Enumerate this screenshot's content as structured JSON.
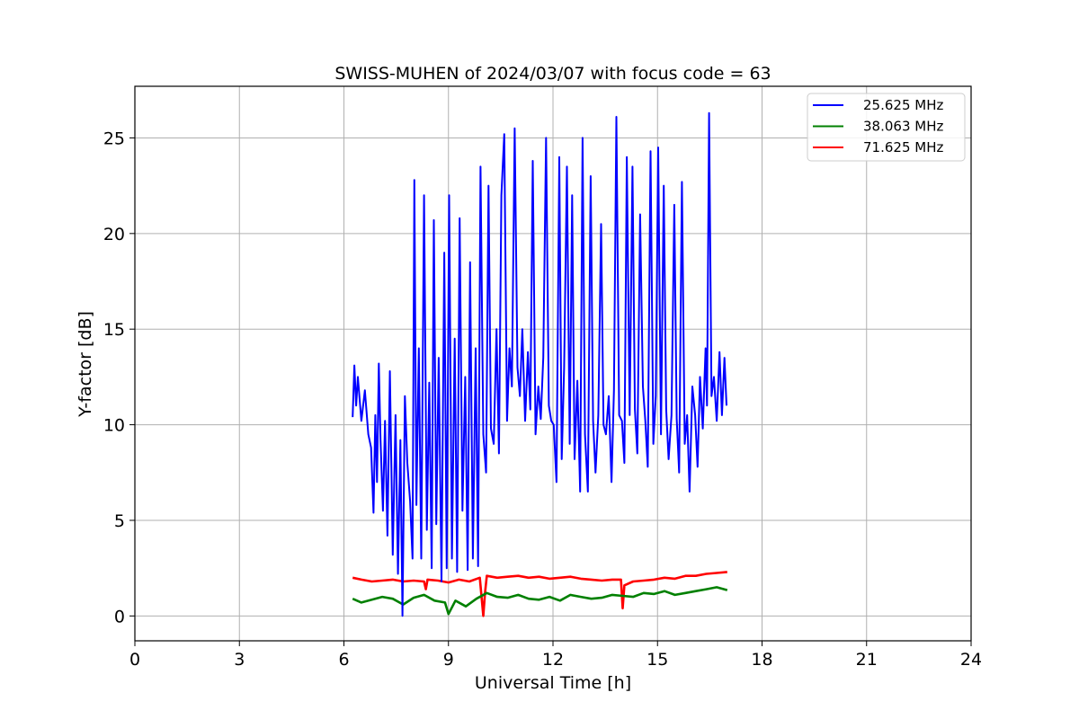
{
  "chart_data": {
    "type": "line",
    "title": "SWISS-MUHEN of 2024/03/07 with focus code = 63",
    "xlabel": "Universal Time [h]",
    "ylabel": "Y-factor [dB]",
    "xlim": [
      0,
      24
    ],
    "ylim": [
      -1.3,
      27.7
    ],
    "xticks": [
      "0",
      "3",
      "6",
      "9",
      "12",
      "15",
      "18",
      "21",
      "24"
    ],
    "yticks": [
      "0",
      "5",
      "10",
      "15",
      "20",
      "25"
    ],
    "grid": true,
    "legend_position": "top-right",
    "series": [
      {
        "name": "25.625 MHz",
        "color": "#0000ff",
        "x": [
          6.25,
          6.3,
          6.35,
          6.4,
          6.5,
          6.6,
          6.7,
          6.78,
          6.85,
          6.9,
          6.95,
          7.0,
          7.05,
          7.12,
          7.18,
          7.25,
          7.32,
          7.4,
          7.48,
          7.55,
          7.62,
          7.68,
          7.75,
          7.82,
          7.9,
          7.97,
          8.02,
          8.08,
          8.15,
          8.22,
          8.3,
          8.38,
          8.45,
          8.52,
          8.58,
          8.65,
          8.72,
          8.8,
          8.88,
          8.95,
          9.02,
          9.1,
          9.18,
          9.25,
          9.32,
          9.4,
          9.48,
          9.55,
          9.62,
          9.7,
          9.78,
          9.85,
          9.92,
          10.0,
          10.08,
          10.15,
          10.22,
          10.3,
          10.38,
          10.45,
          10.52,
          10.6,
          10.68,
          10.75,
          10.82,
          10.9,
          10.98,
          11.05,
          11.12,
          11.2,
          11.28,
          11.35,
          11.42,
          11.5,
          11.58,
          11.65,
          11.72,
          11.8,
          11.88,
          11.95,
          12.02,
          12.1,
          12.18,
          12.25,
          12.32,
          12.4,
          12.48,
          12.55,
          12.62,
          12.7,
          12.78,
          12.85,
          12.92,
          13.0,
          13.08,
          13.15,
          13.22,
          13.3,
          13.38,
          13.45,
          13.52,
          13.6,
          13.68,
          13.75,
          13.82,
          13.9,
          13.98,
          14.05,
          14.12,
          14.2,
          14.28,
          14.35,
          14.42,
          14.5,
          14.58,
          14.65,
          14.72,
          14.8,
          14.88,
          14.95,
          15.02,
          15.1,
          15.18,
          15.25,
          15.32,
          15.4,
          15.48,
          15.55,
          15.62,
          15.7,
          15.78,
          15.85,
          15.92,
          16.0,
          16.08,
          16.15,
          16.22,
          16.3,
          16.38,
          16.42,
          16.48,
          16.55,
          16.62,
          16.7,
          16.78,
          16.85,
          16.92,
          16.98
        ],
        "y": [
          10.4,
          13.1,
          11.0,
          12.5,
          10.2,
          11.8,
          9.5,
          8.8,
          5.4,
          10.5,
          7.0,
          13.2,
          9.2,
          5.5,
          10.2,
          4.2,
          12.8,
          3.2,
          10.5,
          2.2,
          9.2,
          0.0,
          11.5,
          8.0,
          6.0,
          3.0,
          22.8,
          5.8,
          14.0,
          3.0,
          22.0,
          4.5,
          12.2,
          2.5,
          20.7,
          4.8,
          13.5,
          1.8,
          19.0,
          2.5,
          22.0,
          3.0,
          14.5,
          2.3,
          20.8,
          5.5,
          12.5,
          2.4,
          18.5,
          3.0,
          14.0,
          2.6,
          23.5,
          9.5,
          7.5,
          22.5,
          9.8,
          9.0,
          15.0,
          8.5,
          22.0,
          25.2,
          10.2,
          14.0,
          12.0,
          25.5,
          13.0,
          11.5,
          15.0,
          10.2,
          13.8,
          10.8,
          23.8,
          9.5,
          12.0,
          10.3,
          13.5,
          25.0,
          11.0,
          10.2,
          10.0,
          7.0,
          24.0,
          8.2,
          13.0,
          23.5,
          9.0,
          22.0,
          8.2,
          12.3,
          6.5,
          25.0,
          9.5,
          6.5,
          23.0,
          10.2,
          7.5,
          10.5,
          20.5,
          10.0,
          9.5,
          11.5,
          7.0,
          11.8,
          26.1,
          10.5,
          10.2,
          8.0,
          24.0,
          10.5,
          23.5,
          10.8,
          8.5,
          21.0,
          12.0,
          10.2,
          7.8,
          24.3,
          9.0,
          11.5,
          24.5,
          9.5,
          22.5,
          10.8,
          8.2,
          10.5,
          21.5,
          10.3,
          7.5,
          22.7,
          9.0,
          10.5,
          6.5,
          12.0,
          10.5,
          7.8,
          12.5,
          9.8,
          14.0,
          11.0,
          26.3,
          11.5,
          12.5,
          10.2,
          13.8,
          10.5,
          13.5,
          11.0
        ]
      },
      {
        "name": "38.063 MHz",
        "color": "#008000",
        "x": [
          6.25,
          6.5,
          6.8,
          7.1,
          7.4,
          7.7,
          8.0,
          8.3,
          8.6,
          8.9,
          9.0,
          9.2,
          9.5,
          9.8,
          10.1,
          10.4,
          10.7,
          11.0,
          11.3,
          11.6,
          11.9,
          12.2,
          12.5,
          12.8,
          13.1,
          13.4,
          13.7,
          14.0,
          14.3,
          14.6,
          14.9,
          15.2,
          15.5,
          15.8,
          16.1,
          16.4,
          16.7,
          17.0
        ],
        "y": [
          0.9,
          0.7,
          0.85,
          1.0,
          0.9,
          0.6,
          0.95,
          1.1,
          0.8,
          0.7,
          0.1,
          0.8,
          0.5,
          0.9,
          1.2,
          1.0,
          0.95,
          1.1,
          0.9,
          0.85,
          1.0,
          0.8,
          1.1,
          1.0,
          0.9,
          0.95,
          1.1,
          1.05,
          1.0,
          1.2,
          1.15,
          1.3,
          1.1,
          1.2,
          1.3,
          1.4,
          1.5,
          1.35
        ]
      },
      {
        "name": "71.625 MHz",
        "color": "#ff0000",
        "x": [
          6.25,
          6.5,
          6.8,
          7.1,
          7.4,
          7.7,
          8.0,
          8.3,
          8.35,
          8.4,
          8.7,
          9.0,
          9.3,
          9.6,
          9.9,
          10.0,
          10.05,
          10.1,
          10.4,
          10.7,
          11.0,
          11.3,
          11.6,
          11.9,
          12.2,
          12.5,
          12.8,
          13.1,
          13.4,
          13.7,
          13.95,
          14.0,
          14.05,
          14.3,
          14.6,
          14.9,
          15.2,
          15.5,
          15.8,
          16.1,
          16.4,
          16.7,
          17.0
        ],
        "y": [
          2.0,
          1.9,
          1.8,
          1.85,
          1.9,
          1.8,
          1.85,
          1.8,
          1.4,
          1.9,
          1.85,
          1.75,
          1.9,
          1.8,
          2.0,
          0.0,
          1.2,
          2.1,
          2.0,
          2.05,
          2.1,
          2.0,
          2.05,
          1.95,
          2.0,
          2.05,
          1.95,
          1.9,
          1.85,
          1.9,
          1.9,
          0.4,
          1.6,
          1.8,
          1.85,
          1.9,
          2.0,
          1.95,
          2.1,
          2.1,
          2.2,
          2.25,
          2.3
        ]
      }
    ]
  }
}
